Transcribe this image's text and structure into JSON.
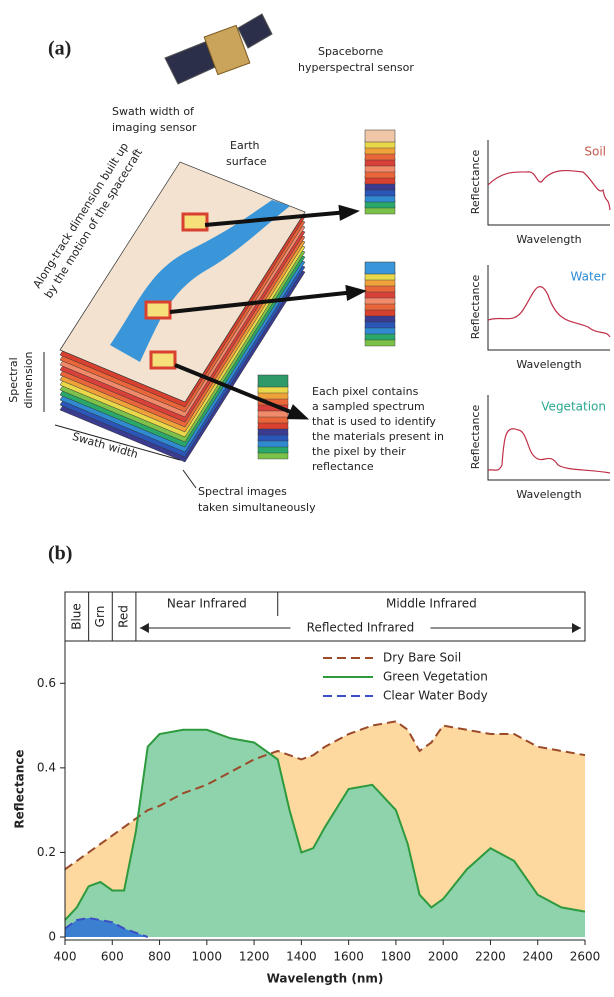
{
  "panel_a": {
    "label": "(a)",
    "sensor_label": [
      "Spaceborne",
      "hyperspectral sensor"
    ],
    "swath_sensor_label": [
      "Swath width of",
      "imaging sensor"
    ],
    "earth_label": [
      "Earth",
      "surface"
    ],
    "along_track_label": [
      "Along-track dimension built up",
      "by the motion of the spacecraft"
    ],
    "spectral_dimension_label": [
      "Spectral",
      "dimension"
    ],
    "swath_width_label": "Swath width",
    "pixel_note": [
      "Each pixel contains",
      "a sampled spectrum",
      "that is used to identify",
      "the materials present in",
      "the pixel by their",
      "reflectance"
    ],
    "images_note": [
      "Spectral  images",
      "taken simultaneously"
    ],
    "plots": [
      {
        "label": "Soil",
        "y_label": "Reflectance",
        "x_label": "Wavelength"
      },
      {
        "label": "Water",
        "y_label": "Reflectance",
        "x_label": "Wavelength"
      },
      {
        "label": "Vegetation",
        "y_label": "Reflectance",
        "x_label": "Wavelength"
      }
    ]
  },
  "panel_b_label": "(b)",
  "chart_data": {
    "type": "area",
    "x_label": "Wavelength (nm)",
    "y_label": "Reflectance",
    "bands": [
      {
        "name": "Blue",
        "range": [
          400,
          500
        ]
      },
      {
        "name": "Grn",
        "range": [
          500,
          600
        ]
      },
      {
        "name": "Red",
        "range": [
          600,
          700
        ]
      },
      {
        "name": "Near Infrared",
        "range": [
          700,
          1300
        ]
      },
      {
        "name": "Middle Infrared",
        "range": [
          1300,
          2600
        ]
      }
    ],
    "reflected_band": {
      "name": "Reflected Infrared",
      "range": [
        700,
        2600
      ]
    },
    "x": [
      400,
      450,
      500,
      550,
      600,
      650,
      700,
      750,
      800,
      900,
      1000,
      1100,
      1200,
      1300,
      1350,
      1400,
      1450,
      1500,
      1600,
      1700,
      1800,
      1850,
      1900,
      1950,
      2000,
      2100,
      2200,
      2300,
      2400,
      2500,
      2600
    ],
    "series": [
      {
        "name": "Dry Bare Soil",
        "color": "#9b4a2a",
        "fill": "#fdd9a0",
        "dashed": true,
        "values": [
          0.16,
          0.18,
          0.2,
          0.22,
          0.24,
          0.26,
          0.28,
          0.3,
          0.31,
          0.34,
          0.36,
          0.39,
          0.42,
          0.44,
          0.43,
          0.42,
          0.43,
          0.45,
          0.48,
          0.5,
          0.51,
          0.49,
          0.44,
          0.46,
          0.5,
          0.49,
          0.48,
          0.48,
          0.45,
          0.44,
          0.43
        ]
      },
      {
        "name": "Green Vegetation",
        "color": "#2e9a3e",
        "fill": "#8fd3ad",
        "dashed": false,
        "values": [
          0.04,
          0.07,
          0.12,
          0.13,
          0.11,
          0.11,
          0.25,
          0.45,
          0.48,
          0.49,
          0.49,
          0.47,
          0.46,
          0.42,
          0.3,
          0.2,
          0.21,
          0.26,
          0.35,
          0.36,
          0.3,
          0.22,
          0.1,
          0.07,
          0.09,
          0.16,
          0.21,
          0.18,
          0.1,
          0.07,
          0.06
        ]
      },
      {
        "name": "Clear Water Body",
        "color": "#3a4fc4",
        "fill": "#3b7fd1",
        "dashed": true,
        "values": [
          0.02,
          0.04,
          0.045,
          0.04,
          0.035,
          0.02,
          0.01,
          0,
          null,
          null,
          null,
          null,
          null,
          null,
          null,
          null,
          null,
          null,
          null,
          null,
          null,
          null,
          null,
          null,
          null,
          null,
          null,
          null,
          null,
          null,
          null
        ]
      }
    ],
    "xlim": [
      400,
      2600
    ],
    "ylim": [
      0,
      0.7
    ],
    "xticks": [
      400,
      600,
      800,
      1000,
      1200,
      1400,
      1600,
      1800,
      2000,
      2200,
      2400,
      2600
    ],
    "yticks": [
      0,
      0.2,
      0.4,
      0.6
    ],
    "legend": "upper right",
    "grid": false
  }
}
